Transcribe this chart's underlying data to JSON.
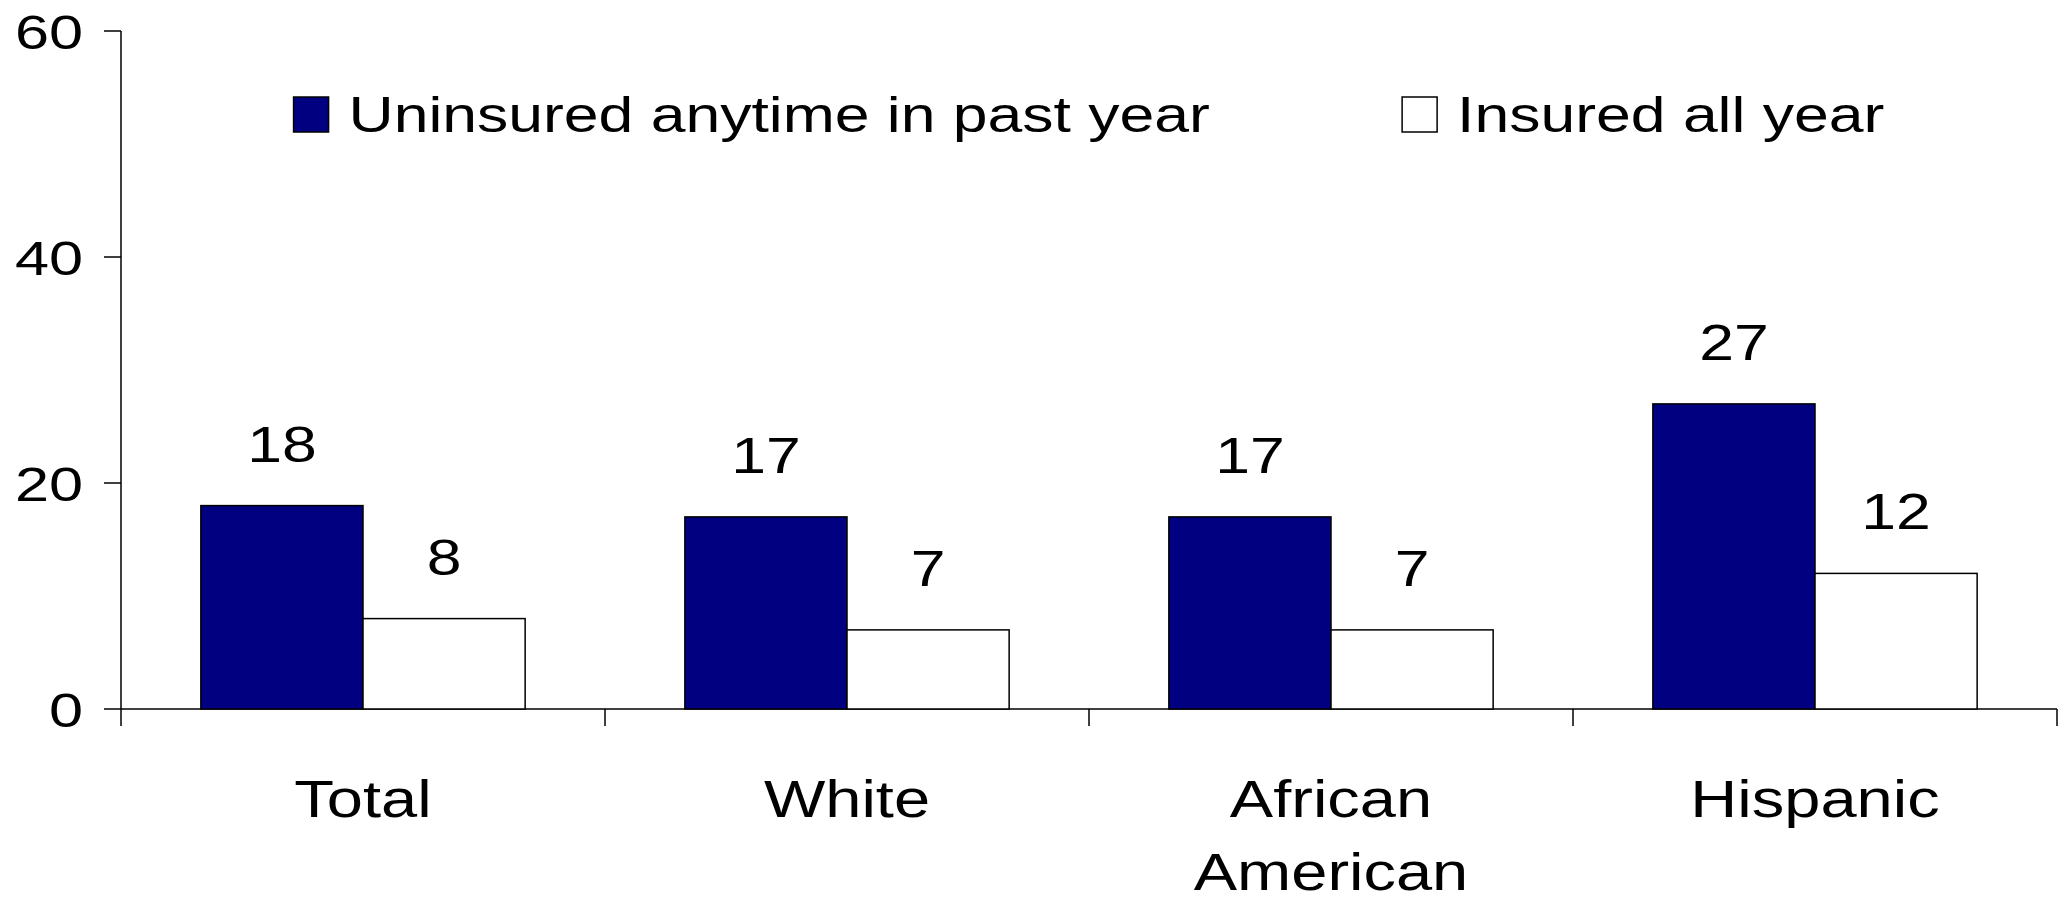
{
  "chart_data": {
    "type": "bar",
    "categories": [
      "Total",
      "White",
      "African American",
      "Hispanic"
    ],
    "series": [
      {
        "name": "Uninsured anytime in past year",
        "color": "#000080",
        "values": [
          18,
          17,
          17,
          27
        ]
      },
      {
        "name": "Insured all year",
        "color": "#ffffff",
        "values": [
          8,
          7,
          7,
          12
        ]
      }
    ],
    "ylim": [
      0,
      60
    ],
    "yticks": [
      0,
      20,
      40,
      60
    ],
    "legend": "top",
    "data_labels": true
  }
}
